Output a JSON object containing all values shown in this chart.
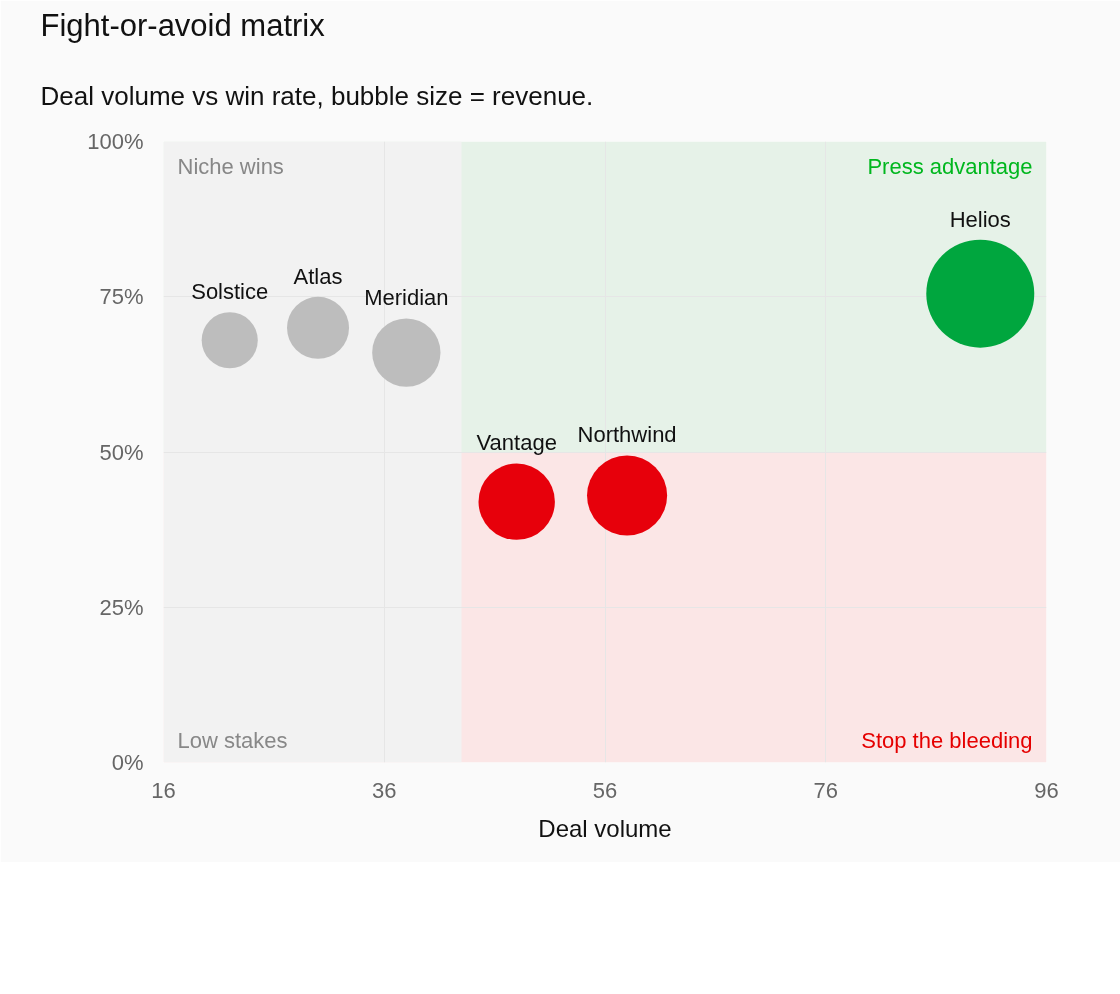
{
  "chart_data": {
    "type": "bubble",
    "title": "Fight-or-avoid matrix",
    "subtitle": "Deal volume vs win rate, bubble size = revenue.",
    "xlabel": "Deal volume",
    "x": [
      22,
      30,
      38,
      48,
      58,
      90
    ],
    "values": [
      68,
      70,
      66,
      42,
      43,
      75.5
    ],
    "sizes": [
      0.27,
      0.33,
      0.4,
      0.5,
      0.55,
      1
    ],
    "colors": [
      "#bdbdbd",
      "#bdbdbd",
      "#bdbdbd",
      "#e7000b",
      "#e7000b",
      "#00a63e"
    ],
    "xlim": [
      16,
      96
    ],
    "xticks": [
      16,
      36,
      56,
      76,
      96
    ],
    "ylim": [
      0,
      100
    ],
    "yticks": [
      {
        "value": 0,
        "label": "0%"
      },
      {
        "value": 25,
        "label": "25%"
      },
      {
        "value": 50,
        "label": "50%"
      },
      {
        "value": 75,
        "label": "75%"
      },
      {
        "value": 100,
        "label": "100%"
      }
    ],
    "grid": true,
    "bands": [
      {
        "axis": "y",
        "from": 50,
        "to": 100,
        "label": "Press advantage",
        "color": "#e6f2e8"
      },
      {
        "axis": "y",
        "from": 0,
        "to": 50,
        "label": "Stop the bleeding",
        "color": "#fbe6e6"
      },
      {
        "axis": "x",
        "from": 16,
        "to": 43,
        "label": "Niche wins",
        "color": "#f2f2f2"
      }
    ],
    "annotations": [
      "Low stakes",
      {
        "text": "Solstice",
        "x": 22,
        "y": 68
      },
      {
        "text": "Atlas",
        "x": 30,
        "y": 70
      },
      {
        "text": "Meridian",
        "x": 38,
        "y": 66
      },
      {
        "text": "Vantage",
        "x": 48,
        "y": 42
      },
      {
        "text": "Northwind",
        "x": 58,
        "y": 43
      },
      {
        "text": "Helios",
        "x": 90,
        "y": 75.5
      }
    ]
  }
}
